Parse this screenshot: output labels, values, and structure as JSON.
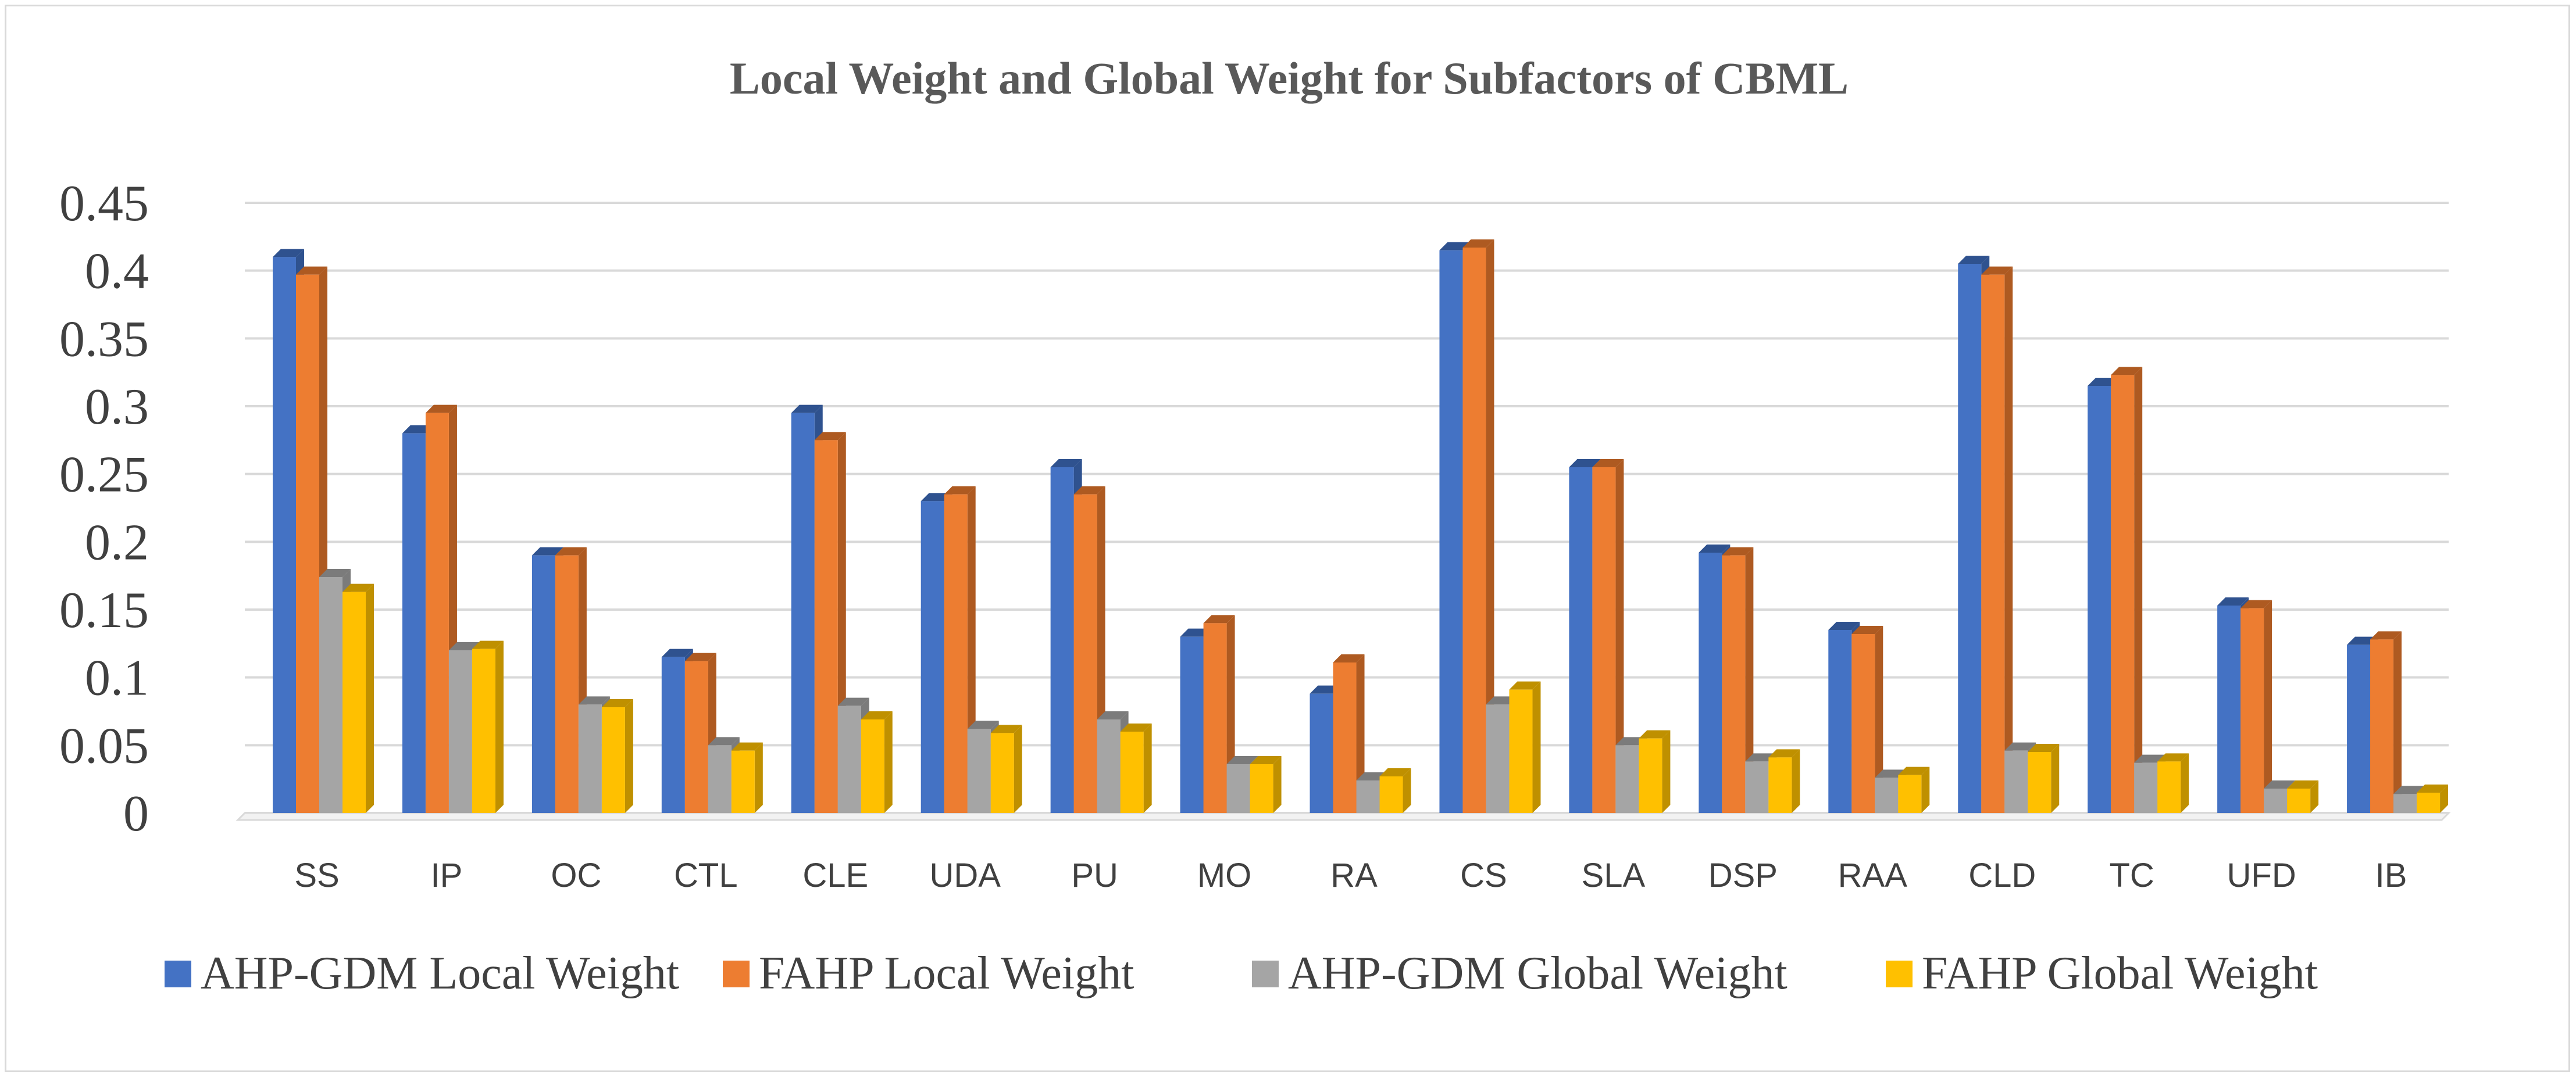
{
  "chart_data": {
    "type": "bar",
    "title": "Local Weight and Global Weight for Subfactors of CBML",
    "xlabel": "",
    "ylabel": "",
    "ylim": [
      0,
      0.45
    ],
    "yticks": [
      "0",
      "0.05",
      "0.1",
      "0.15",
      "0.2",
      "0.25",
      "0.3",
      "0.35",
      "0.4",
      "0.45"
    ],
    "grid": true,
    "legend_position": "bottom",
    "categories": [
      "SS",
      "IP",
      "OC",
      "CTL",
      "CLE",
      "UDA",
      "PU",
      "MO",
      "RA",
      "CS",
      "SLA",
      "DSP",
      "RAA",
      "CLD",
      "TC",
      "UFD",
      "IB"
    ],
    "series": [
      {
        "name": "AHP-GDM Local Weight",
        "color": "#4472c4",
        "shade": "#2f528f",
        "values": [
          0.41,
          0.28,
          0.19,
          0.115,
          0.295,
          0.23,
          0.255,
          0.13,
          0.088,
          0.415,
          0.255,
          0.192,
          0.135,
          0.405,
          0.315,
          0.153,
          0.124
        ]
      },
      {
        "name": "FAHP Local Weight",
        "color": "#ed7d31",
        "shade": "#ae5a21",
        "values": [
          0.397,
          0.295,
          0.19,
          0.112,
          0.275,
          0.235,
          0.235,
          0.14,
          0.111,
          0.417,
          0.255,
          0.19,
          0.132,
          0.397,
          0.323,
          0.151,
          0.128
        ]
      },
      {
        "name": "AHP-GDM Global Weight",
        "color": "#a5a5a5",
        "shade": "#7b7b7b",
        "values": [
          0.174,
          0.12,
          0.08,
          0.05,
          0.079,
          0.062,
          0.069,
          0.036,
          0.024,
          0.08,
          0.05,
          0.038,
          0.026,
          0.046,
          0.037,
          0.018,
          0.014
        ]
      },
      {
        "name": "FAHP Global Weight",
        "color": "#ffc000",
        "shade": "#bf9000",
        "values": [
          0.163,
          0.121,
          0.078,
          0.046,
          0.069,
          0.059,
          0.06,
          0.036,
          0.027,
          0.091,
          0.055,
          0.041,
          0.028,
          0.045,
          0.038,
          0.018,
          0.015
        ]
      }
    ]
  }
}
